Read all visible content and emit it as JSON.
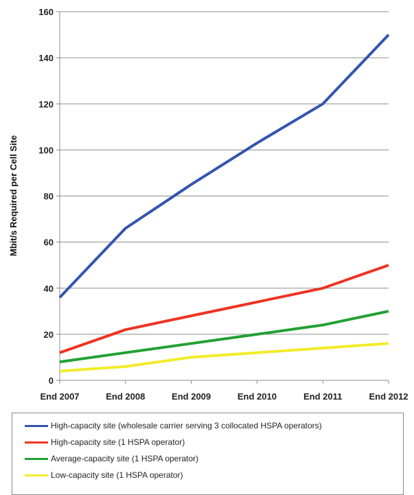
{
  "chart_data": {
    "type": "line",
    "ylabel": "Mbit/s Required  per Cell Site",
    "xlabel": "",
    "categories": [
      "End 2007",
      "End 2008",
      "End 2009",
      "End 2010",
      "End 2011",
      "End 2012"
    ],
    "ylim": [
      0,
      160
    ],
    "yticks": [
      "0",
      "20",
      "40",
      "60",
      "80",
      "100",
      "120",
      "140",
      "160"
    ],
    "grid": "horizontal",
    "legend_position": "bottom",
    "series": [
      {
        "name": "High-capacity site (wholesale carrier serving 3 collocated HSPA operators)",
        "color": "#3355b0",
        "values": [
          36,
          66,
          85,
          103,
          120,
          150
        ]
      },
      {
        "name": "High-capacity site (1 HSPA operator)",
        "color": "#ee3322",
        "values": [
          12,
          22,
          28,
          34,
          40,
          50
        ]
      },
      {
        "name": "Average-capacity site (1 HSPA operator)",
        "color": "#22a033",
        "values": [
          8,
          12,
          16,
          20,
          24,
          30
        ]
      },
      {
        "name": "Low-capacity site (1 HSPA operator)",
        "color": "#f2ec2a",
        "values": [
          4,
          6,
          10,
          12,
          14,
          16
        ]
      }
    ]
  }
}
